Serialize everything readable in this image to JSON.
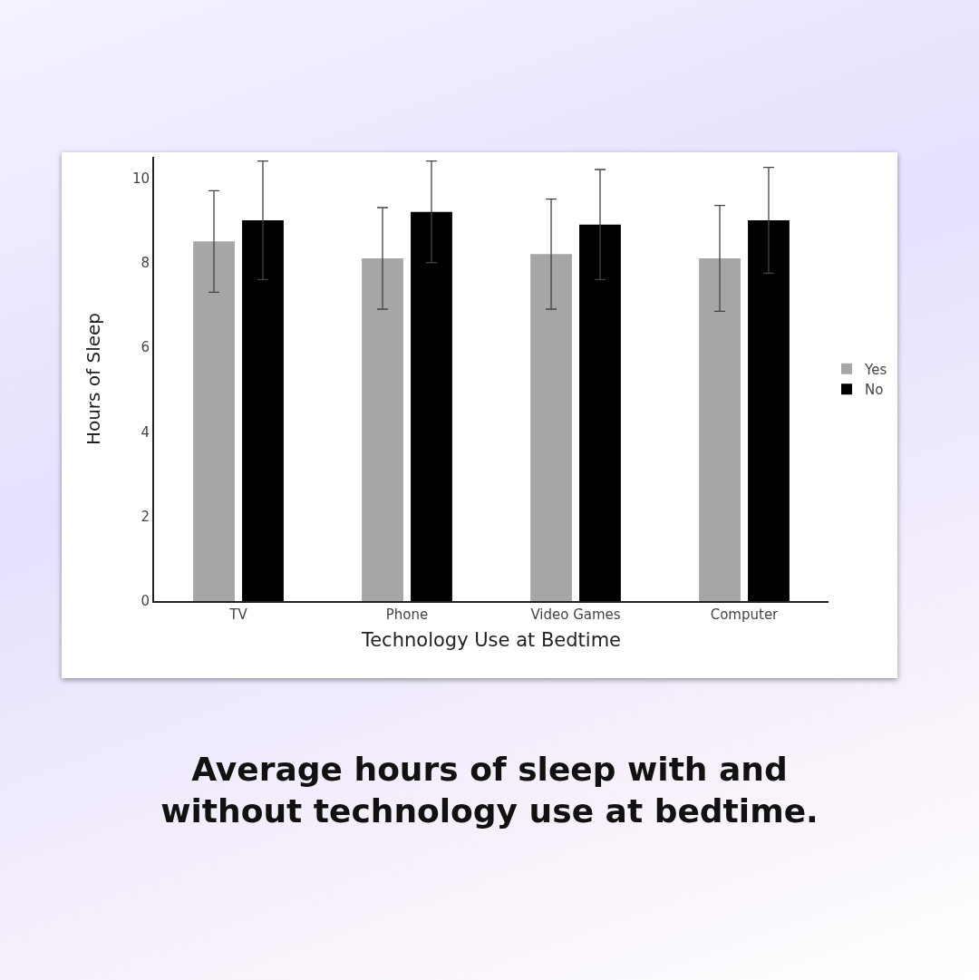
{
  "chart_data": {
    "type": "bar",
    "title": "Average hours of sleep with and without technology use at bedtime.",
    "xlabel": "Technology Use at Bedtime",
    "ylabel": "Hours of Sleep",
    "categories": [
      "TV",
      "Phone",
      "Video Games",
      "Computer"
    ],
    "series": [
      {
        "name": "Yes",
        "color": "#a6a6a6",
        "values": [
          8.5,
          8.1,
          8.2,
          8.1
        ],
        "errors": [
          1.2,
          1.2,
          1.3,
          1.25
        ]
      },
      {
        "name": "No",
        "color": "#000000",
        "values": [
          9.0,
          9.2,
          8.9,
          9.0
        ],
        "errors": [
          1.4,
          1.2,
          1.3,
          1.25
        ]
      }
    ],
    "ylim": [
      0,
      10.5
    ],
    "yticks": [
      0,
      2,
      4,
      6,
      8,
      10
    ],
    "grid": false,
    "legend": "right"
  }
}
